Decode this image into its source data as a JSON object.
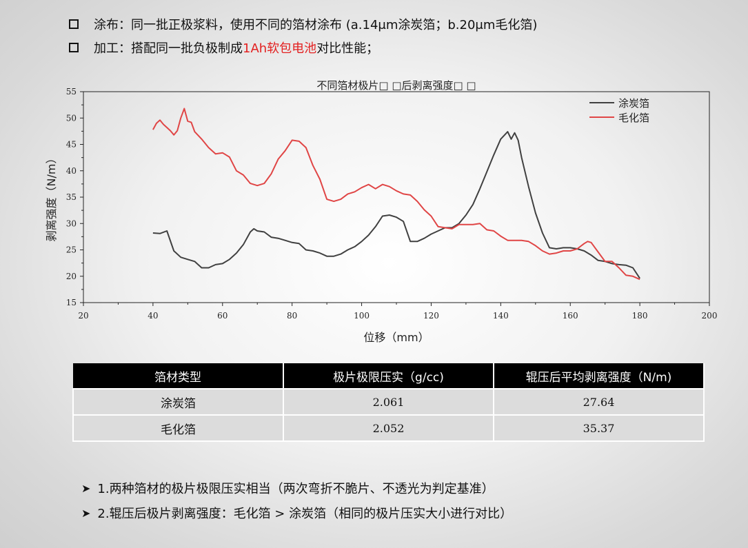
{
  "bullets": [
    {
      "parts": [
        "涂布：同一批正极浆料，使用不同的箔材涂布 (a.14μm涂炭箔；b.20μm毛化箔)"
      ],
      "red": ""
    },
    {
      "parts": [
        "加工：搭配同一批负极制成",
        "对比性能；"
      ],
      "red": "1Ah软包电池"
    }
  ],
  "chart_data": {
    "type": "line",
    "title": "不同箔材极片□ □后剥离强度□ □",
    "xlabel": "位移（mm）",
    "ylabel": "剥离强度（N/m）",
    "xlim": [
      20,
      200
    ],
    "ylim": [
      15,
      55
    ],
    "xticks": [
      20,
      40,
      60,
      80,
      100,
      120,
      140,
      160,
      180,
      200
    ],
    "yticks": [
      15,
      20,
      25,
      30,
      35,
      40,
      45,
      50,
      55
    ],
    "legend_position": "top-right",
    "series": [
      {
        "name": "涂炭箔",
        "color": "#404040",
        "x": [
          40,
          42,
          44,
          46,
          48,
          50,
          52,
          54,
          56,
          58,
          60,
          62,
          64,
          66,
          68,
          69,
          70,
          72,
          74,
          76,
          78,
          80,
          82,
          84,
          86,
          88,
          90,
          92,
          94,
          96,
          98,
          100,
          102,
          104,
          106,
          108,
          110,
          112,
          114,
          116,
          118,
          120,
          122,
          124,
          126,
          128,
          130,
          132,
          134,
          136,
          138,
          140,
          142,
          143,
          144,
          145,
          146,
          148,
          150,
          152,
          154,
          156,
          158,
          160,
          162,
          164,
          166,
          168,
          170,
          172,
          174,
          176,
          178,
          180
        ],
        "values": [
          28.2,
          28.1,
          28.6,
          24.8,
          23.6,
          23.2,
          22.8,
          21.6,
          21.6,
          22.2,
          22.4,
          23.2,
          24.4,
          26.0,
          28.4,
          29.0,
          28.6,
          28.4,
          27.4,
          27.2,
          26.8,
          26.4,
          26.2,
          25.0,
          24.8,
          24.4,
          23.8,
          23.8,
          24.2,
          25.0,
          25.6,
          26.6,
          27.8,
          29.4,
          31.4,
          31.6,
          31.2,
          30.4,
          26.6,
          26.6,
          27.2,
          28.0,
          28.6,
          29.2,
          29.2,
          30.0,
          31.6,
          33.6,
          36.6,
          39.8,
          43.0,
          46.0,
          47.4,
          46.0,
          47.2,
          45.8,
          42.5,
          37.0,
          32.0,
          28.2,
          25.4,
          25.2,
          25.4,
          25.4,
          25.2,
          24.8,
          24.0,
          23.0,
          22.8,
          22.4,
          22.2,
          22.1,
          21.6,
          19.6
        ]
      },
      {
        "name": "毛化箔",
        "color": "#e04545",
        "x": [
          40,
          41,
          42,
          43,
          44,
          45,
          46,
          47,
          48,
          49,
          50,
          51,
          52,
          54,
          56,
          58,
          60,
          62,
          64,
          66,
          68,
          70,
          72,
          74,
          76,
          78,
          80,
          82,
          84,
          86,
          88,
          90,
          92,
          94,
          96,
          98,
          100,
          102,
          104,
          106,
          108,
          110,
          112,
          114,
          116,
          118,
          120,
          122,
          124,
          126,
          128,
          130,
          132,
          134,
          136,
          138,
          140,
          142,
          144,
          146,
          148,
          150,
          152,
          154,
          156,
          158,
          160,
          162,
          164,
          165,
          166,
          168,
          170,
          172,
          174,
          176,
          178,
          180
        ],
        "values": [
          47.8,
          49.0,
          49.6,
          48.8,
          48.2,
          47.6,
          46.8,
          47.6,
          50.0,
          51.8,
          49.4,
          49.2,
          47.4,
          46.0,
          44.4,
          43.2,
          43.4,
          42.6,
          40.0,
          39.2,
          37.6,
          37.2,
          37.6,
          39.4,
          42.2,
          43.8,
          45.8,
          45.6,
          44.4,
          41.0,
          38.4,
          34.6,
          34.2,
          34.6,
          35.6,
          36.0,
          36.8,
          37.4,
          36.6,
          37.4,
          37.0,
          36.2,
          35.6,
          35.4,
          34.2,
          32.6,
          31.4,
          29.4,
          29.2,
          29.0,
          29.8,
          29.8,
          29.8,
          30.0,
          28.8,
          28.6,
          27.6,
          26.8,
          26.8,
          26.8,
          26.6,
          25.8,
          24.8,
          24.2,
          24.4,
          24.8,
          24.8,
          25.2,
          26.2,
          26.6,
          26.4,
          24.6,
          22.8,
          22.8,
          21.6,
          20.2,
          20.0,
          19.4
        ]
      }
    ]
  },
  "table": {
    "headers": [
      "箔材类型",
      "极片极限压实（g/cc)",
      "辊压后平均剥离强度（N/m)"
    ],
    "rows": [
      [
        "涂炭箔",
        "2.061",
        "27.64"
      ],
      [
        "毛化箔",
        "2.052",
        "35.37"
      ]
    ]
  },
  "notes": [
    "1.两种箔材的极片极限压实相当（两次弯折不脆片、不透光为判定基准）",
    "2.辊压后极片剥离强度：毛化箔 > 涂炭箔（相同的极片压实大小进行对比）"
  ]
}
